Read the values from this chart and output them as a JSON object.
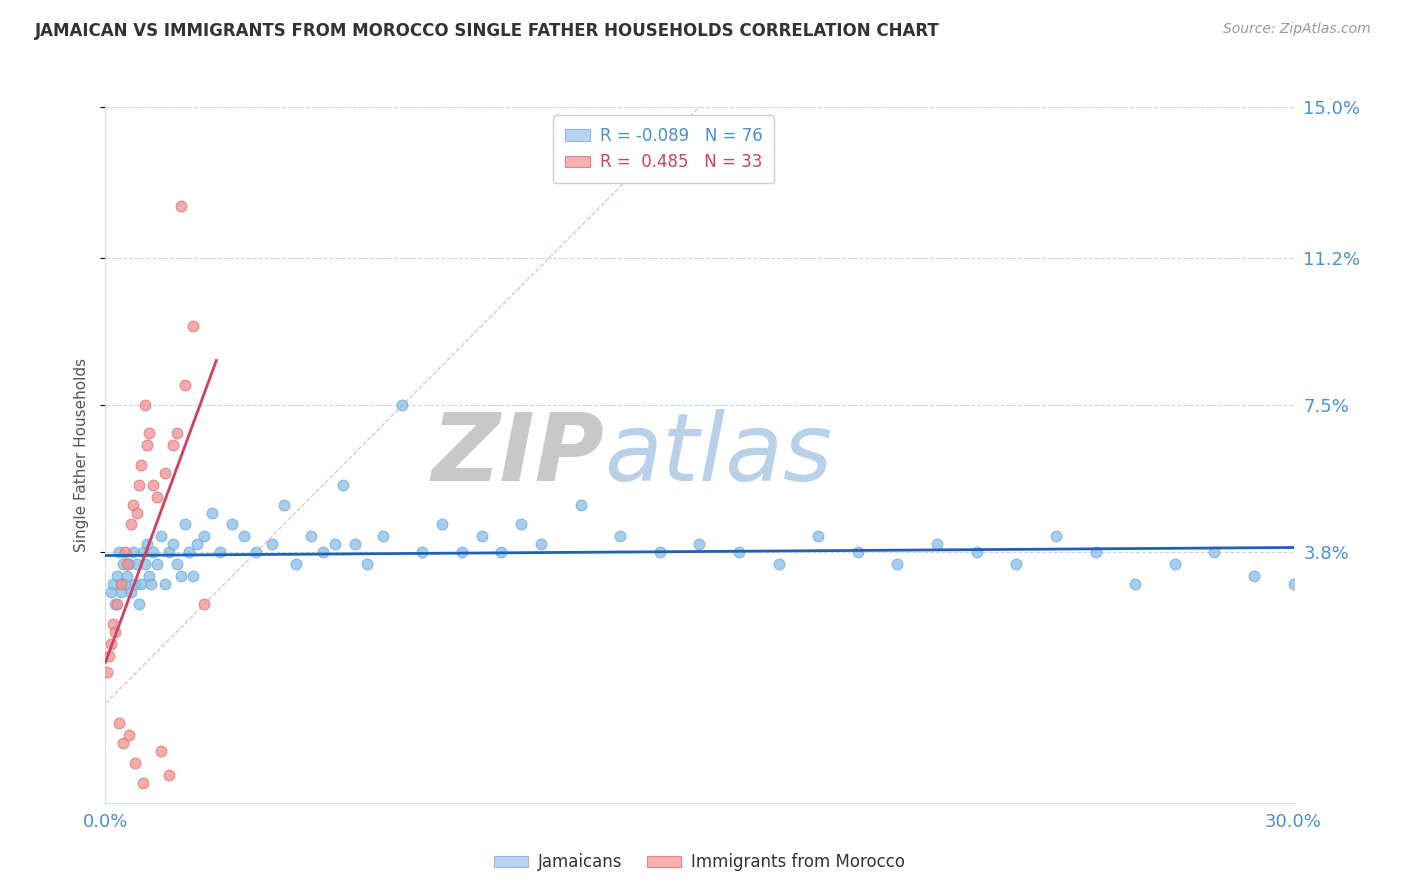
{
  "title": "JAMAICAN VS IMMIGRANTS FROM MOROCCO SINGLE FATHER HOUSEHOLDS CORRELATION CHART",
  "source": "Source: ZipAtlas.com",
  "ylabel": "Single Father Households",
  "watermark_zip": "ZIP",
  "watermark_atlas": "atlas",
  "xlim": [
    0.0,
    30.0
  ],
  "ylim_bottom": -2.5,
  "ylim_top": 15.0,
  "ytick_labels": [
    "3.8%",
    "7.5%",
    "11.2%",
    "15.0%"
  ],
  "ytick_values": [
    3.8,
    7.5,
    11.2,
    15.0
  ],
  "jamaican_color": "#89bde8",
  "jamaica_edge": "#6aaad8",
  "morocco_color": "#f09090",
  "morocco_edge": "#e07070",
  "trendline_jamaican_color": "#2060b8",
  "trendline_morocco_color": "#d04060",
  "diagonal_color": "#e8c0c0",
  "grid_color": "#c8d8ea",
  "axis_color": "#4a90d0",
  "title_color": "#333333",
  "source_color": "#999999",
  "jamaican_x": [
    0.15,
    0.2,
    0.25,
    0.3,
    0.35,
    0.4,
    0.45,
    0.5,
    0.55,
    0.6,
    0.65,
    0.7,
    0.75,
    0.8,
    0.85,
    0.9,
    0.95,
    1.0,
    1.05,
    1.1,
    1.15,
    1.2,
    1.3,
    1.4,
    1.5,
    1.6,
    1.7,
    1.8,
    1.9,
    2.0,
    2.1,
    2.2,
    2.3,
    2.5,
    2.7,
    2.9,
    3.2,
    3.5,
    3.8,
    4.2,
    4.5,
    4.8,
    5.2,
    5.5,
    5.8,
    6.0,
    6.3,
    6.6,
    7.0,
    7.5,
    8.0,
    8.5,
    9.0,
    9.5,
    10.0,
    10.5,
    11.0,
    12.0,
    13.0,
    14.0,
    15.0,
    16.0,
    17.0,
    18.0,
    19.0,
    20.0,
    21.0,
    22.0,
    23.0,
    24.0,
    25.0,
    26.0,
    27.0,
    28.0,
    29.0,
    30.0
  ],
  "jamaican_y": [
    2.8,
    3.0,
    2.5,
    3.2,
    3.8,
    2.8,
    3.5,
    3.0,
    3.2,
    3.5,
    2.8,
    3.8,
    3.0,
    3.5,
    2.5,
    3.0,
    3.8,
    3.5,
    4.0,
    3.2,
    3.0,
    3.8,
    3.5,
    4.2,
    3.0,
    3.8,
    4.0,
    3.5,
    3.2,
    4.5,
    3.8,
    3.2,
    4.0,
    4.2,
    4.8,
    3.8,
    4.5,
    4.2,
    3.8,
    4.0,
    5.0,
    3.5,
    4.2,
    3.8,
    4.0,
    5.5,
    4.0,
    3.5,
    4.2,
    7.5,
    3.8,
    4.5,
    3.8,
    4.2,
    3.8,
    4.5,
    4.0,
    5.0,
    4.2,
    3.8,
    4.0,
    3.8,
    3.5,
    4.2,
    3.8,
    3.5,
    4.0,
    3.8,
    3.5,
    4.2,
    3.8,
    3.0,
    3.5,
    3.8,
    3.2,
    3.0
  ],
  "morocco_x": [
    0.05,
    0.1,
    0.15,
    0.2,
    0.25,
    0.3,
    0.35,
    0.4,
    0.45,
    0.5,
    0.55,
    0.6,
    0.65,
    0.7,
    0.75,
    0.8,
    0.85,
    0.9,
    0.95,
    1.0,
    1.05,
    1.1,
    1.2,
    1.3,
    1.4,
    1.5,
    1.6,
    1.7,
    1.8,
    1.9,
    2.0,
    2.2,
    2.5
  ],
  "morocco_y": [
    0.8,
    1.2,
    1.5,
    2.0,
    1.8,
    2.5,
    -0.5,
    3.0,
    -1.0,
    3.8,
    3.5,
    -0.8,
    4.5,
    5.0,
    -1.5,
    4.8,
    5.5,
    6.0,
    -2.0,
    7.5,
    6.5,
    6.8,
    5.5,
    5.2,
    -1.2,
    5.8,
    -1.8,
    6.5,
    6.8,
    12.5,
    8.0,
    9.5,
    2.5
  ]
}
